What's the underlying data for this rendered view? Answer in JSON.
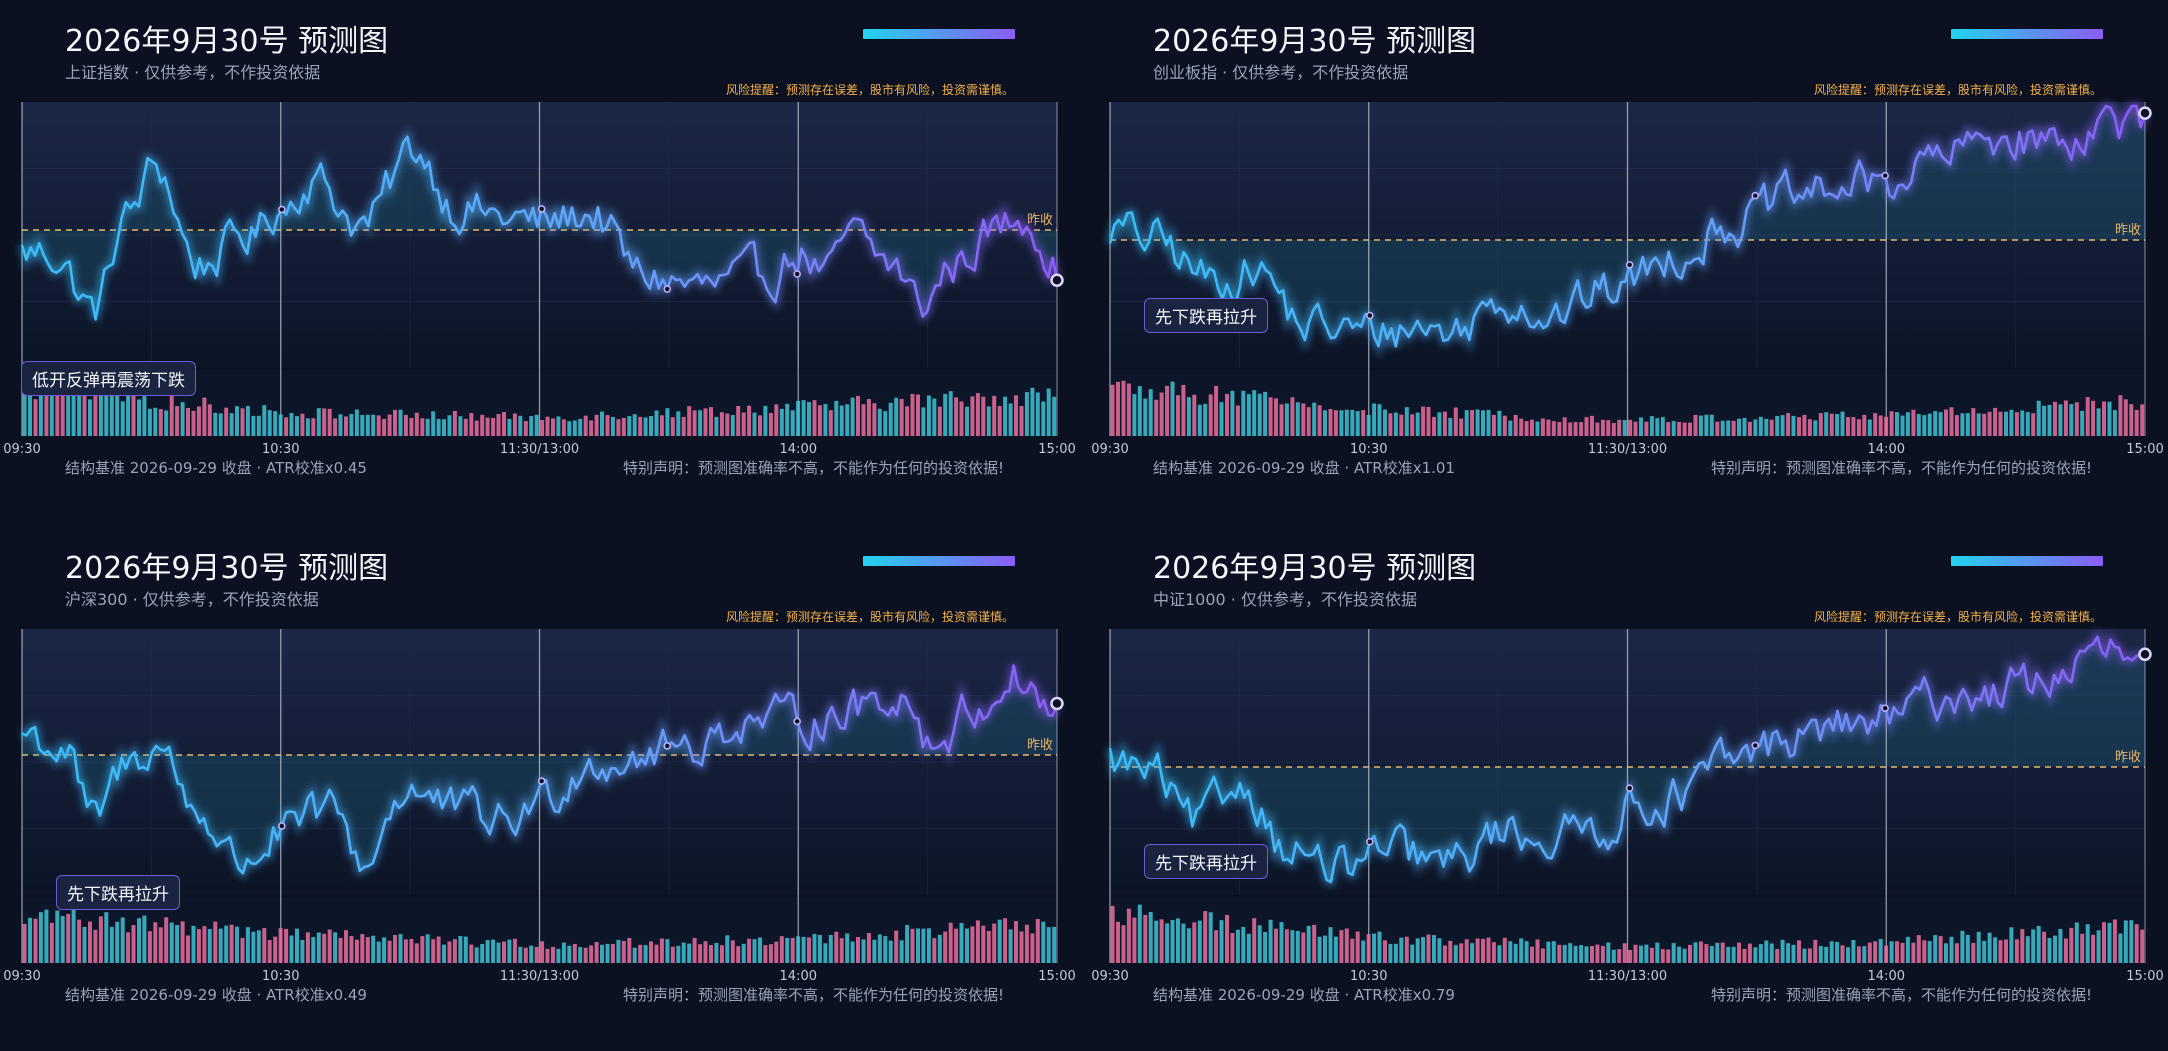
{
  "common": {
    "title": "2026年9月30号 预测图",
    "risk_note": "风险提醒：预测存在误差，股市有风险，投资需谨慎。",
    "disclaimer": "特别声明：预测图准确率不高，不能作为任何的投资依据!",
    "prev_close_label": "昨收",
    "time_ticks": [
      "09:30",
      "10:30",
      "11:30/13:00",
      "14:00",
      "15:00"
    ]
  },
  "colors": {
    "background": "#0b1120",
    "line_start": "#38bdf8",
    "line_end": "#8b5cf6",
    "prev_close": "#e9b56a",
    "volume_up": "#ec6f9e",
    "volume_down": "#3fc3d4"
  },
  "chart_data": [
    {
      "type": "line",
      "index": "上证指数",
      "subtitle": "上证指数 · 仅供参考，不作投资依据",
      "footer": "结构基准 2026-09-29 收盘 · ATR校准x0.45",
      "pattern": "低开反弹再震荡下跌",
      "series_keypoints": [
        [
          0,
          -0.2
        ],
        [
          0.03,
          -0.2
        ],
        [
          0.07,
          -0.7
        ],
        [
          0.1,
          0.1
        ],
        [
          0.13,
          0.55
        ],
        [
          0.17,
          -0.3
        ],
        [
          0.22,
          -0.05
        ],
        [
          0.25,
          0.2
        ],
        [
          0.28,
          0.45
        ],
        [
          0.33,
          0.05
        ],
        [
          0.38,
          0.7
        ],
        [
          0.42,
          0.2
        ],
        [
          0.47,
          0.1
        ],
        [
          0.5,
          0.05
        ],
        [
          0.55,
          0.15
        ],
        [
          0.6,
          -0.4
        ],
        [
          0.66,
          -0.5
        ],
        [
          0.72,
          -0.4
        ],
        [
          0.75,
          -0.2
        ],
        [
          0.78,
          -0.4
        ],
        [
          0.8,
          -0.05
        ],
        [
          0.84,
          -0.3
        ],
        [
          0.87,
          -0.65
        ],
        [
          0.9,
          -0.3
        ],
        [
          0.94,
          0.0
        ],
        [
          0.97,
          0.15
        ],
        [
          1.0,
          -0.3
        ]
      ],
      "volume_trend": [
        0.9,
        0.45,
        0.35,
        0.55,
        0.8
      ]
    },
    {
      "type": "line",
      "index": "创业板指",
      "subtitle": "创业板指 · 仅供参考，不作投资依据",
      "footer": "结构基准 2026-09-29 收盘 · ATR校准x1.01",
      "pattern": "先下跌再拉升",
      "series_keypoints": [
        [
          0,
          0.1
        ],
        [
          0.04,
          0.0
        ],
        [
          0.1,
          -0.35
        ],
        [
          0.14,
          -0.25
        ],
        [
          0.19,
          -0.75
        ],
        [
          0.25,
          -0.8
        ],
        [
          0.3,
          -0.75
        ],
        [
          0.33,
          -0.8
        ],
        [
          0.38,
          -0.5
        ],
        [
          0.43,
          -0.65
        ],
        [
          0.48,
          -0.45
        ],
        [
          0.5,
          -0.35
        ],
        [
          0.55,
          -0.1
        ],
        [
          0.6,
          0.15
        ],
        [
          0.66,
          0.35
        ],
        [
          0.7,
          0.45
        ],
        [
          0.75,
          0.5
        ],
        [
          0.8,
          0.7
        ],
        [
          0.86,
          0.9
        ],
        [
          0.92,
          0.85
        ],
        [
          0.96,
          1.05
        ],
        [
          1.0,
          0.95
        ]
      ],
      "volume_trend": [
        0.95,
        0.5,
        0.3,
        0.4,
        0.65
      ]
    },
    {
      "type": "line",
      "index": "沪深300",
      "subtitle": "沪深300 · 仅供参考，不作投资依据",
      "footer": "结构基准 2026-09-29 收盘 · ATR校准x0.49",
      "pattern": "先下跌再拉升",
      "series_keypoints": [
        [
          0,
          0.2
        ],
        [
          0.04,
          0.05
        ],
        [
          0.07,
          -0.6
        ],
        [
          0.1,
          -0.1
        ],
        [
          0.13,
          0.1
        ],
        [
          0.17,
          -0.5
        ],
        [
          0.21,
          -0.95
        ],
        [
          0.25,
          -0.7
        ],
        [
          0.3,
          -0.5
        ],
        [
          0.33,
          -0.95
        ],
        [
          0.37,
          -0.3
        ],
        [
          0.42,
          -0.5
        ],
        [
          0.47,
          -0.6
        ],
        [
          0.5,
          -0.4
        ],
        [
          0.55,
          -0.05
        ],
        [
          0.6,
          0.0
        ],
        [
          0.65,
          0.1
        ],
        [
          0.7,
          0.3
        ],
        [
          0.75,
          0.3
        ],
        [
          0.8,
          0.4
        ],
        [
          0.85,
          0.55
        ],
        [
          0.88,
          0.1
        ],
        [
          0.92,
          0.4
        ],
        [
          0.96,
          0.7
        ],
        [
          1.0,
          0.35
        ]
      ],
      "volume_trend": [
        0.9,
        0.55,
        0.35,
        0.45,
        0.75
      ]
    },
    {
      "type": "line",
      "index": "中证1000",
      "subtitle": "中证1000 · 仅供参考，不作投资依据",
      "footer": "结构基准 2026-09-29 收盘 · ATR校准x0.79",
      "pattern": "先下跌再拉升",
      "series_keypoints": [
        [
          0,
          0.05
        ],
        [
          0.04,
          -0.05
        ],
        [
          0.08,
          -0.5
        ],
        [
          0.13,
          -0.15
        ],
        [
          0.17,
          -0.7
        ],
        [
          0.22,
          -0.9
        ],
        [
          0.27,
          -0.75
        ],
        [
          0.33,
          -0.85
        ],
        [
          0.38,
          -0.55
        ],
        [
          0.43,
          -0.6
        ],
        [
          0.48,
          -0.5
        ],
        [
          0.5,
          -0.35
        ],
        [
          0.55,
          -0.25
        ],
        [
          0.6,
          0.05
        ],
        [
          0.66,
          0.25
        ],
        [
          0.7,
          0.35
        ],
        [
          0.75,
          0.4
        ],
        [
          0.8,
          0.6
        ],
        [
          0.85,
          0.65
        ],
        [
          0.9,
          0.75
        ],
        [
          0.94,
          0.9
        ],
        [
          0.97,
          1.0
        ],
        [
          1.0,
          0.8
        ]
      ],
      "volume_trend": [
        0.95,
        0.5,
        0.3,
        0.4,
        0.7
      ]
    }
  ]
}
